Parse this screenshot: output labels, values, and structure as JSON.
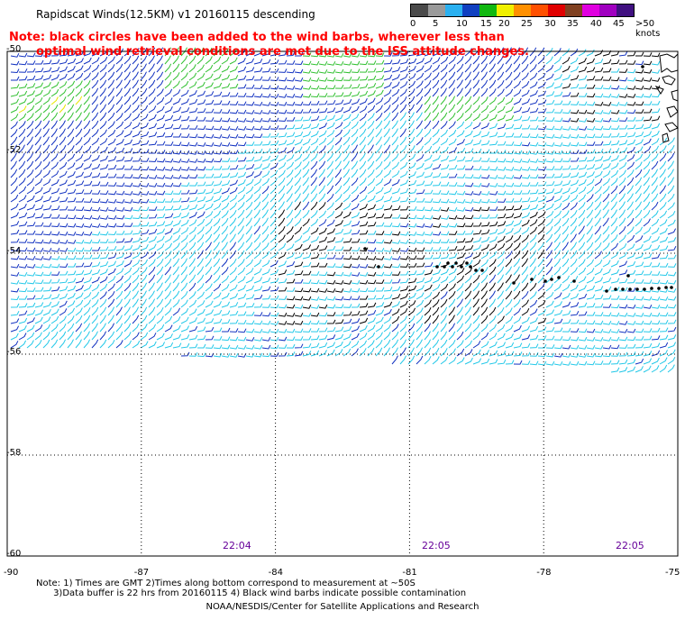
{
  "title": "Rapidscat Winds(12.5KM) v1 20160115 descending",
  "note_line1": "Note: black circles have been added to the wind barbs, wherever less than",
  "note_line2": "optimal wind retrieval conditions are met due to the ISS attitude changes.",
  "legend": {
    "labels": [
      "0",
      "5",
      "10",
      "15",
      "20",
      "25",
      "30",
      "35",
      "40",
      "45",
      ">50 knots"
    ],
    "colors": [
      "#4a4a4a",
      "#9a9a9a",
      "#2ab0f0",
      "#1040c0",
      "#10b810",
      "#f0f000",
      "#ff9000",
      "#ff5000",
      "#e00000",
      "#804020",
      "#e000e0",
      "#a000c0",
      "#401080"
    ]
  },
  "y_axis_labels": [
    "-50",
    "-52",
    "-54",
    "-56",
    "-58",
    "-60"
  ],
  "x_axis_labels": [
    "-90",
    "-87",
    "-84",
    "-81",
    "-78",
    "-75"
  ],
  "times": [
    "22:04",
    "22:05",
    "22:05"
  ],
  "footnote": "Note: 1) Times are GMT 2)Times along bottom correspond to measurement at ~50S\n      3)Data buffer is 22 hrs from 20160115 4) Black wind barbs indicate possible contamination",
  "credit": "NOAA/NESDIS/Center for Satellite Applications and Research",
  "map_data": {
    "lon_range": [
      -90,
      -75
    ],
    "lat_range": [
      -60,
      -50
    ],
    "barb_colors": {
      "light_blue": "#22c8e8",
      "dark_blue": "#1030c0",
      "green": "#30c030",
      "yellow": "#e8e800",
      "black": "#000000"
    }
  }
}
